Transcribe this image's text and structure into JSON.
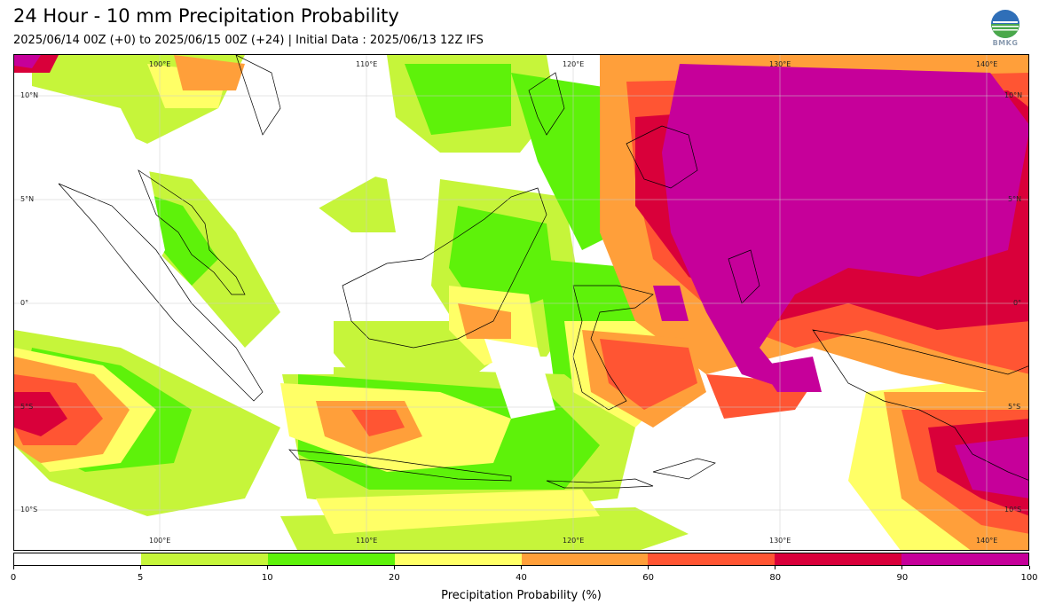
{
  "header": {
    "title": "24 Hour - 10 mm Precipitation Probability",
    "subtitle": "2025/06/14 00Z (+0) to 2025/06/15 00Z (+24) | Initial Data : 2025/06/13 12Z IFS",
    "logo_text": "BMKG"
  },
  "map": {
    "lon_labels": [
      "100°E",
      "110°E",
      "120°E",
      "130°E",
      "140°E"
    ],
    "lat_labels": [
      "10°N",
      "5°N",
      "0°",
      "5°S",
      "10°S"
    ]
  },
  "colorbar": {
    "label": "Precipitation Probability (%)",
    "ticks": [
      "0",
      "5",
      "10",
      "20",
      "40",
      "60",
      "80",
      "90",
      "100"
    ],
    "colors": [
      "#ffffff",
      "#c6f53a",
      "#5ef20a",
      "#ffff66",
      "#ff9f3a",
      "#ff5533",
      "#d9003a",
      "#c6009a"
    ]
  },
  "colors": {
    "p5": "#c6f53a",
    "p10": "#5ef20a",
    "p20": "#ffff66",
    "p40": "#ff9f3a",
    "p60": "#ff5533",
    "p80": "#d9003a",
    "p90": "#c6009a",
    "coast": "#000000"
  }
}
